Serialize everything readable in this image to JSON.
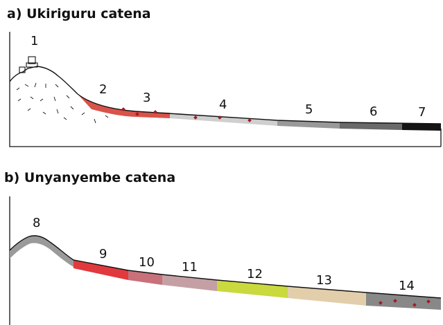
{
  "panels": [
    {
      "title": "a)  Ukiriguru catena",
      "units": [
        {
          "label": "1",
          "color": "#ffffff"
        },
        {
          "label": "2",
          "color": "#d9534a"
        },
        {
          "label": "3",
          "color": "#d9534a"
        },
        {
          "label": "4",
          "color": "#cfcfcf"
        },
        {
          "label": "5",
          "color": "#999999"
        },
        {
          "label": "6",
          "color": "#6a6a6a"
        },
        {
          "label": "7",
          "color": "#141414"
        }
      ]
    },
    {
      "title": "b)  Unyanyembe catena",
      "units": [
        {
          "label": "8",
          "color": "#9a9a9a"
        },
        {
          "label": "9",
          "color": "#e03a3e"
        },
        {
          "label": "10",
          "color": "#c8717a"
        },
        {
          "label": "11",
          "color": "#c4a0a4"
        },
        {
          "label": "12",
          "color": "#c9d93e"
        },
        {
          "label": "13",
          "color": "#e2ceaa"
        },
        {
          "label": "14",
          "color": "#888888"
        }
      ]
    }
  ],
  "colors": {
    "outline": "#111111",
    "nodule": "#a01c24"
  }
}
